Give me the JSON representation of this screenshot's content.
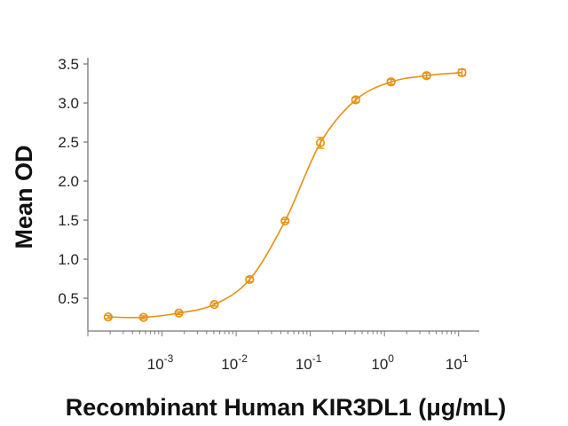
{
  "chart_data": {
    "type": "scatter",
    "title": "",
    "xlabel": "Recombinant Human KIR3DL1 (μg/mL)",
    "ylabel": "Mean OD",
    "xscale": "log",
    "xlim": [
      0.0001,
      19
    ],
    "ylim": [
      0.08,
      3.58
    ],
    "xticks": [
      {
        "value": 0.001,
        "base": "10",
        "exp": "-3"
      },
      {
        "value": 0.01,
        "base": "10",
        "exp": "-2"
      },
      {
        "value": 0.1,
        "base": "10",
        "exp": "-1"
      },
      {
        "value": 1,
        "base": "10",
        "exp": "0"
      },
      {
        "value": 10,
        "base": "10",
        "exp": "1"
      }
    ],
    "yticks": [
      "0.5",
      "1.0",
      "1.5",
      "2.0",
      "2.5",
      "3.0",
      "3.5"
    ],
    "grid": false,
    "color": "#E8900F",
    "series": [
      {
        "x": [
          0.000188,
          0.000564,
          0.00169,
          0.00508,
          0.0152,
          0.0457,
          0.137,
          0.41,
          1.23,
          3.7,
          11.1
        ],
        "y": [
          0.26,
          0.255,
          0.31,
          0.42,
          0.74,
          1.49,
          2.49,
          3.04,
          3.27,
          3.35,
          3.39
        ],
        "error": [
          0.02,
          0.02,
          0.02,
          0.02,
          0.03,
          0.02,
          0.07,
          0.03,
          0.03,
          0.03,
          0.04
        ],
        "fit": "smooth-curve"
      }
    ]
  }
}
